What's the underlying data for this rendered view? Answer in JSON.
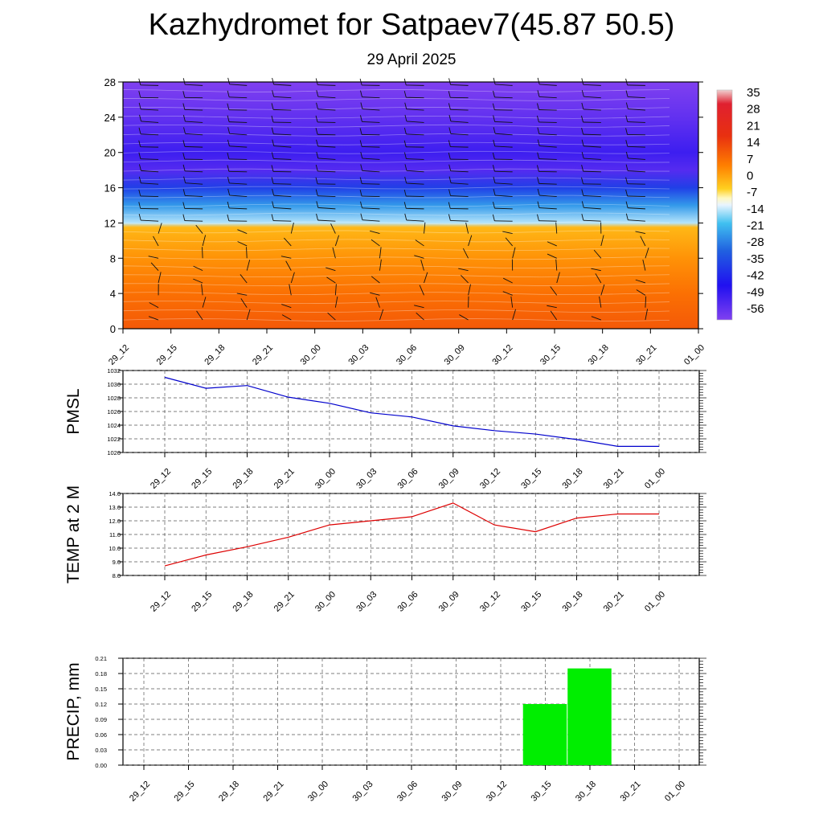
{
  "title": "Kazhydromet for Satpaev7(45.87 50.5)",
  "subtitle": "29 April 2025",
  "time_labels": [
    "29_12",
    "29_15",
    "29_18",
    "29_21",
    "30_00",
    "30_03",
    "30_06",
    "30_09",
    "30_12",
    "30_15",
    "30_18",
    "30_21",
    "01_00"
  ],
  "colors": {
    "pmsl_line": "#0000cc",
    "temp_line": "#dd0000",
    "precip_bar": "#00ee00",
    "grid": "#555555"
  },
  "chart_data": [
    {
      "type": "heatmap",
      "ylim": [
        0,
        28
      ],
      "y_ticks": [
        0,
        4,
        8,
        12,
        16,
        20,
        24,
        28
      ],
      "colorbar_labels": [
        "35",
        "28",
        "21",
        "14",
        "7",
        "0",
        "-7",
        "-14",
        "-21",
        "-28",
        "-35",
        "-42",
        "-49",
        "-56"
      ],
      "colorbar_range": [
        -63,
        42
      ],
      "temperature_profile": [
        {
          "level": 0,
          "value": 14
        },
        {
          "level": 4,
          "value": 10
        },
        {
          "level": 8,
          "value": 5
        },
        {
          "level": 11.5,
          "value": 0
        },
        {
          "level": 12,
          "value": -13
        },
        {
          "level": 14,
          "value": -24
        },
        {
          "level": 16,
          "value": -38
        },
        {
          "level": 18,
          "value": -56
        },
        {
          "level": 20,
          "value": -52
        },
        {
          "level": 24,
          "value": -58
        },
        {
          "level": 28,
          "value": -63
        }
      ],
      "has_wind_barbs": true
    },
    {
      "type": "line",
      "ylabel": "PMSL",
      "ylim": [
        1020,
        1032
      ],
      "y_ticks": [
        1020,
        1022,
        1024,
        1026,
        1028,
        1030,
        1032
      ],
      "series": [
        {
          "values": [
            1031.0,
            1029.4,
            1029.8,
            1028.1,
            1027.2,
            1025.8,
            1025.2,
            1023.9,
            1023.2,
            1022.7,
            1021.9,
            1020.9,
            1020.9
          ]
        }
      ]
    },
    {
      "type": "line",
      "ylabel": "TEMP at 2 M",
      "ylim": [
        8.0,
        14.0
      ],
      "y_ticks": [
        "8.0",
        "9.0",
        "10.0",
        "11.0",
        "12.0",
        "13.0",
        "14.0"
      ],
      "series": [
        {
          "values": [
            8.7,
            9.5,
            10.1,
            10.8,
            11.7,
            12.0,
            12.3,
            13.3,
            11.7,
            11.2,
            12.2,
            12.5,
            12.5
          ]
        }
      ]
    },
    {
      "type": "bar",
      "ylabel": "PRECIP, mm",
      "ylim": [
        0,
        0.21
      ],
      "y_ticks": [
        "0.00",
        "0.03",
        "0.06",
        "0.09",
        "0.12",
        "0.15",
        "0.18",
        "0.21"
      ],
      "categories": [
        "29_12",
        "29_15",
        "29_18",
        "29_21",
        "30_00",
        "30_03",
        "30_06",
        "30_09",
        "30_12",
        "30_15",
        "30_18",
        "30_21",
        "01_00"
      ],
      "values": [
        0,
        0,
        0,
        0,
        0,
        0,
        0,
        0,
        0,
        0.12,
        0.19,
        0,
        0
      ]
    }
  ]
}
